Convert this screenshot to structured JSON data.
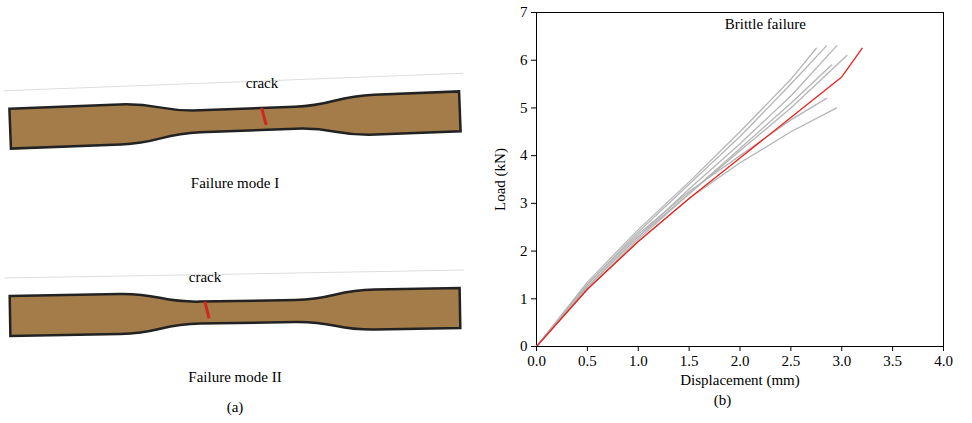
{
  "panel_a": {
    "caption": "(a)",
    "specimens": [
      {
        "label": "Failure mode I",
        "annotation": "crack"
      },
      {
        "label": "Failure mode II",
        "annotation": "crack"
      }
    ]
  },
  "chart_data": {
    "type": "line",
    "caption": "(b)",
    "x_label": "Displacement (mm)",
    "y_label": "Load (kN)",
    "xlim": [
      0,
      4
    ],
    "xticks": [
      {
        "value": 0,
        "label": "0.0"
      },
      {
        "value": 0.5,
        "label": "0.5"
      },
      {
        "value": 1,
        "label": "1.0"
      },
      {
        "value": 1.5,
        "label": "1.5"
      },
      {
        "value": 2,
        "label": "2.0"
      },
      {
        "value": 2.5,
        "label": "2.5"
      },
      {
        "value": 3,
        "label": "3.0"
      },
      {
        "value": 3.5,
        "label": "3.5"
      },
      {
        "value": 4,
        "label": "4.0"
      }
    ],
    "ylim": [
      0,
      7
    ],
    "yticks": [
      0,
      1,
      2,
      3,
      4,
      5,
      6,
      7
    ],
    "annotations": [
      {
        "text": "Brittle failure",
        "x": 1.85,
        "y": 6.75
      }
    ],
    "series": [
      {
        "color": "#b5b5b5",
        "x": [
          0,
          0.5,
          1,
          1.5,
          2,
          2.5,
          2.85
        ],
        "values": [
          0,
          1.3,
          2.4,
          3.4,
          4.4,
          5.5,
          6.3
        ]
      },
      {
        "color": "#b5b5b5",
        "x": [
          0,
          0.5,
          1,
          1.5,
          2,
          2.5,
          2.95
        ],
        "values": [
          0,
          1.25,
          2.3,
          3.3,
          4.25,
          5.25,
          6.3
        ]
      },
      {
        "color": "#b5b5b5",
        "x": [
          0,
          0.5,
          1,
          1.5,
          2,
          2.5,
          3.05
        ],
        "values": [
          0,
          1.2,
          2.25,
          3.2,
          4.1,
          5.0,
          6.1
        ]
      },
      {
        "color": "#b5b5b5",
        "x": [
          0,
          0.5,
          1,
          1.5,
          2,
          2.5,
          2.85
        ],
        "values": [
          0,
          1.3,
          2.35,
          3.25,
          4.0,
          4.75,
          5.2
        ]
      },
      {
        "color": "#b5b5b5",
        "x": [
          0,
          0.5,
          1,
          1.5,
          2,
          2.5,
          2.95
        ],
        "values": [
          0,
          1.2,
          2.2,
          3.1,
          3.85,
          4.5,
          5.0
        ]
      },
      {
        "color": "#b5b5b5",
        "x": [
          0,
          0.5,
          1,
          1.5,
          2,
          2.5,
          2.75
        ],
        "values": [
          0,
          1.35,
          2.45,
          3.45,
          4.5,
          5.6,
          6.25
        ]
      },
      {
        "color": "#b5b5b5",
        "x": [
          0,
          0.5,
          1,
          1.5,
          2,
          2.5,
          2.9
        ],
        "values": [
          0,
          1.25,
          2.3,
          3.2,
          4.15,
          5.1,
          5.9
        ]
      },
      {
        "color": "#e8221c",
        "x": [
          0,
          0.5,
          1,
          1.5,
          2,
          2.5,
          3,
          3.2
        ],
        "values": [
          0,
          1.2,
          2.2,
          3.1,
          3.95,
          4.8,
          5.65,
          6.25
        ]
      }
    ]
  }
}
